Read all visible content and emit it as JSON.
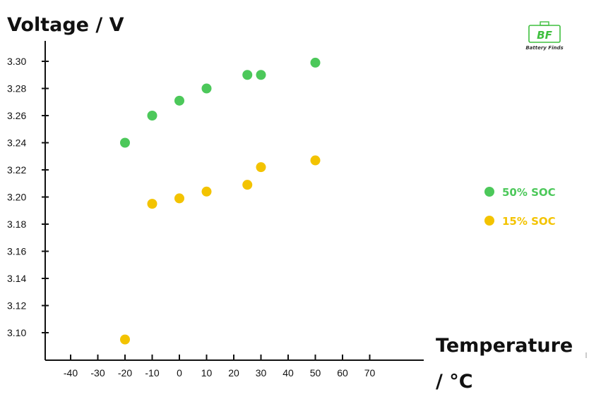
{
  "chart_data": {
    "type": "scatter",
    "ylabel": "Voltage / V",
    "xlabel_line1": "Temperature",
    "xlabel_line2": "/ °C",
    "x_ticks": [
      -40,
      -30,
      -20,
      -10,
      0,
      10,
      20,
      30,
      40,
      50,
      60,
      70
    ],
    "x_tick_labels": [
      "-40",
      "-30",
      "-20",
      "-10",
      "0",
      "10",
      "20",
      "30",
      "40",
      "50",
      "60",
      "70"
    ],
    "y_ticks": [
      3.1,
      3.12,
      3.14,
      3.16,
      3.18,
      3.2,
      3.22,
      3.24,
      3.26,
      3.28,
      3.3
    ],
    "y_tick_labels": [
      "3.10",
      "3.12",
      "3.14",
      "3.16",
      "3.18",
      "3.20",
      "3.22",
      "3.24",
      "3.26",
      "3.28",
      "3.30"
    ],
    "xlim": [
      -40,
      70
    ],
    "ylim": [
      3.1,
      3.3
    ],
    "grid": false,
    "legend_position": "right",
    "series": [
      {
        "name": "50% SOC",
        "color": "#4cc85a",
        "points": [
          {
            "x": -20,
            "y": 3.24
          },
          {
            "x": -10,
            "y": 3.26
          },
          {
            "x": 0,
            "y": 3.271
          },
          {
            "x": 10,
            "y": 3.28
          },
          {
            "x": 25,
            "y": 3.29
          },
          {
            "x": 30,
            "y": 3.29
          },
          {
            "x": 50,
            "y": 3.299
          }
        ]
      },
      {
        "name": "15% SOC",
        "color": "#f3c300",
        "points": [
          {
            "x": -20,
            "y": 3.095
          },
          {
            "x": -10,
            "y": 3.195
          },
          {
            "x": 0,
            "y": 3.199
          },
          {
            "x": 10,
            "y": 3.204
          },
          {
            "x": 25,
            "y": 3.209
          },
          {
            "x": 30,
            "y": 3.222
          },
          {
            "x": 50,
            "y": 3.227
          }
        ]
      }
    ]
  },
  "logo": {
    "brand_initials": "BF",
    "brand_name": "Battery Finds",
    "color": "#3fbf3f"
  }
}
